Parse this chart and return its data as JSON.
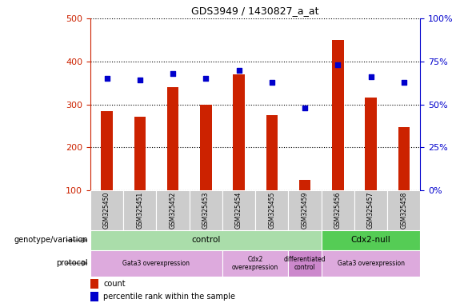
{
  "title": "GDS3949 / 1430827_a_at",
  "samples": [
    "GSM325450",
    "GSM325451",
    "GSM325452",
    "GSM325453",
    "GSM325454",
    "GSM325455",
    "GSM325459",
    "GSM325456",
    "GSM325457",
    "GSM325458"
  ],
  "counts": [
    285,
    272,
    340,
    300,
    370,
    275,
    125,
    450,
    315,
    247
  ],
  "percentile_ranks": [
    65,
    64,
    68,
    65,
    70,
    63,
    48,
    73,
    66,
    63
  ],
  "ylim_left": [
    100,
    500
  ],
  "ylim_right": [
    0,
    100
  ],
  "left_yticks": [
    100,
    200,
    300,
    400,
    500
  ],
  "right_yticks": [
    0,
    25,
    50,
    75,
    100
  ],
  "bar_color": "#cc2200",
  "dot_color": "#0000cc",
  "bar_width": 0.35,
  "genotype_groups": [
    {
      "label": "control",
      "span": [
        0,
        7
      ],
      "color": "#aaddaa"
    },
    {
      "label": "Cdx2-null",
      "span": [
        7,
        10
      ],
      "color": "#55cc55"
    }
  ],
  "protocol_groups": [
    {
      "label": "Gata3 overexpression",
      "span": [
        0,
        4
      ],
      "color": "#ddaadd"
    },
    {
      "label": "Cdx2\noverexpression",
      "span": [
        4,
        6
      ],
      "color": "#ddaadd"
    },
    {
      "label": "differentiated\ncontrol",
      "span": [
        6,
        7
      ],
      "color": "#cc88cc"
    },
    {
      "label": "Gata3 overexpression",
      "span": [
        7,
        10
      ],
      "color": "#ddaadd"
    }
  ],
  "legend_bar_label": "count",
  "legend_dot_label": "percentile rank within the sample",
  "genotype_label": "genotype/variation",
  "protocol_label": "protocol"
}
